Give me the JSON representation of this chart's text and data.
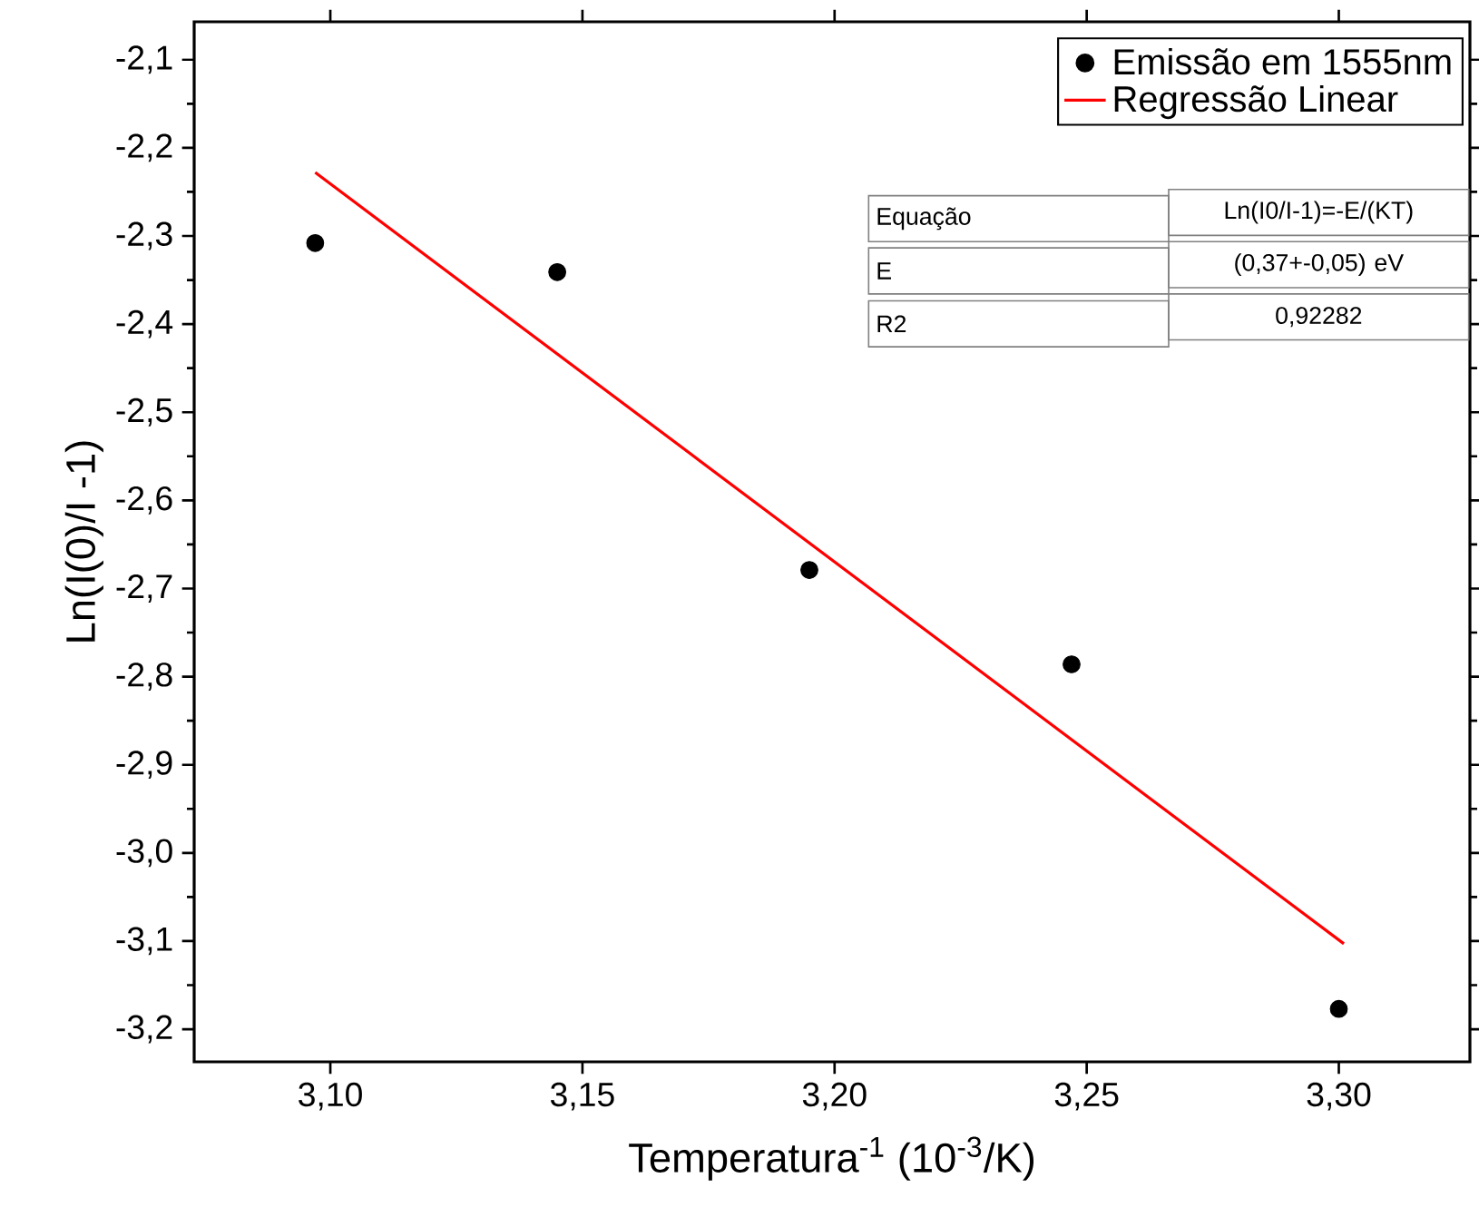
{
  "chart_data": {
    "type": "scatter",
    "xlabel": "Temperatura$^{-1}$ (10$^{-3}$/K)",
    "ylabel": "Ln(I(0)/I -1)",
    "xlim": [
      3.073,
      3.326
    ],
    "ylim": [
      -3.237,
      -2.057
    ],
    "xticks": [
      {
        "value": 3.1,
        "label": "3,10"
      },
      {
        "value": 3.15,
        "label": "3,15"
      },
      {
        "value": 3.2,
        "label": "3,20"
      },
      {
        "value": 3.25,
        "label": "3,25"
      },
      {
        "value": 3.3,
        "label": "3,30"
      }
    ],
    "yticks": [
      {
        "value": -2.1,
        "label": "-2,1"
      },
      {
        "value": -2.2,
        "label": "-2,2"
      },
      {
        "value": -2.3,
        "label": "-2,3"
      },
      {
        "value": -2.4,
        "label": "-2,4"
      },
      {
        "value": -2.5,
        "label": "-2,5"
      },
      {
        "value": -2.6,
        "label": "-2,6"
      },
      {
        "value": -2.7,
        "label": "-2,7"
      },
      {
        "value": -2.8,
        "label": "-2,8"
      },
      {
        "value": -2.9,
        "label": "-2,9"
      },
      {
        "value": -3.0,
        "label": "-3,0"
      },
      {
        "value": -3.1,
        "label": "-3,1"
      },
      {
        "value": -3.2,
        "label": "-3,2"
      }
    ],
    "legend": "top right",
    "grid": false,
    "series": [
      {
        "name": "Emissão em 1555nm",
        "marker": "circle",
        "color": "#000000",
        "x": [
          3.097,
          3.145,
          3.195,
          3.247,
          3.3
        ],
        "values": [
          -2.308,
          -2.341,
          -2.679,
          -2.786,
          -3.177
        ]
      },
      {
        "name": "Regressão Linear",
        "type": "line",
        "marker": "none",
        "color": "#ff0000",
        "x": [
          3.097,
          3.301
        ],
        "values": [
          -2.228,
          -3.103
        ]
      }
    ],
    "annotations": [
      "Equação",
      "Ln(I0/I-1)=-E/(KT)",
      "E",
      "(0,37+-0,05) eV",
      "R2",
      "0,92282"
    ]
  }
}
